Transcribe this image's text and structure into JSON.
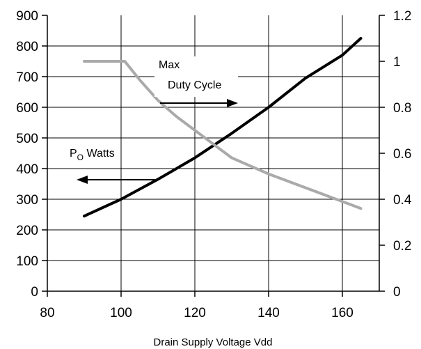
{
  "chart_data": {
    "type": "line",
    "xlabel": "Drain Supply Voltage Vdd",
    "xlim": [
      80,
      170
    ],
    "xticks": [
      80,
      100,
      120,
      140,
      160
    ],
    "ylim_left": [
      0,
      900
    ],
    "yticks_left": [
      0,
      100,
      200,
      300,
      400,
      500,
      600,
      700,
      800,
      900
    ],
    "ylim_right": [
      0,
      1.2
    ],
    "yticks_right": [
      0,
      0.2,
      0.4,
      0.6,
      0.8,
      1,
      1.2
    ],
    "grid": true,
    "series": [
      {
        "name": "P_O Watts",
        "axis": "left",
        "color": "#000000",
        "x": [
          90,
          100,
          110,
          120,
          130,
          140,
          150,
          160,
          165
        ],
        "y": [
          245,
          300,
          365,
          435,
          515,
          600,
          695,
          770,
          825
        ]
      },
      {
        "name": "Max Duty Cycle",
        "axis": "right",
        "color": "#aaaaaa",
        "x": [
          90,
          100,
          101,
          105,
          110,
          115,
          120,
          125,
          130,
          140,
          150,
          160,
          165
        ],
        "y": [
          1.0,
          1.0,
          1.0,
          0.92,
          0.83,
          0.76,
          0.7,
          0.64,
          0.58,
          0.51,
          0.45,
          0.39,
          0.36
        ]
      }
    ],
    "annotations": {
      "max_line1": "Max",
      "max_line2": "Duty Cycle",
      "po_main": "P",
      "po_sub": "O",
      "po_rest": " Watts"
    }
  }
}
